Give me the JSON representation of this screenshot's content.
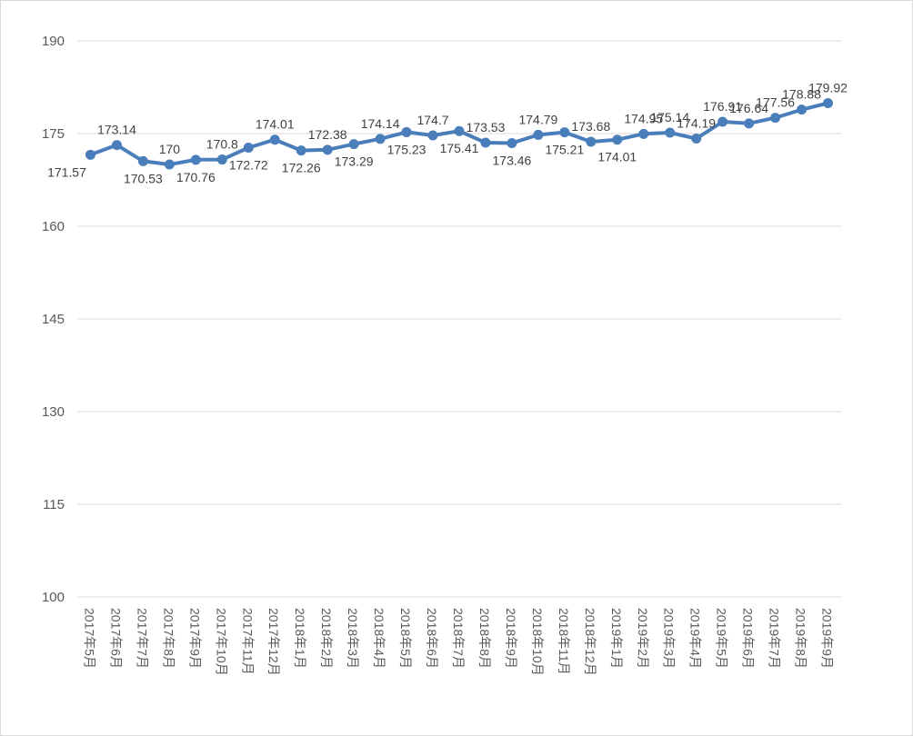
{
  "chart_data": {
    "type": "line",
    "title": "",
    "xlabel": "",
    "ylabel": "",
    "ylim": [
      100,
      190
    ],
    "yticks": [
      100,
      115,
      130,
      145,
      160,
      175,
      190
    ],
    "grid": true,
    "legend": "none",
    "line_color": "#4a7ebb",
    "grid_color": "#d9d9d9",
    "categories": [
      "2017年5月",
      "2017年6月",
      "2017年7月",
      "2017年8月",
      "2017年9月",
      "2017年10月",
      "2017年11月",
      "2017年12月",
      "2018年1月",
      "2018年2月",
      "2018年3月",
      "2018年4月",
      "2018年5月",
      "2018年6月",
      "2018年7月",
      "2018年8月",
      "2018年9月",
      "2018年10月",
      "2018年11月",
      "2018年12月",
      "2019年1月",
      "2019年2月",
      "2019年3月",
      "2019年4月",
      "2019年5月",
      "2019年6月",
      "2019年7月",
      "2019年8月",
      "2019年9月"
    ],
    "series": [
      {
        "values": [
          171.57,
          173.14,
          170.53,
          170,
          170.76,
          170.8,
          172.72,
          174.01,
          172.26,
          172.38,
          173.29,
          174.14,
          175.23,
          174.7,
          175.41,
          173.53,
          173.46,
          174.79,
          175.21,
          173.68,
          174.01,
          174.95,
          175.14,
          174.19,
          176.91,
          176.64,
          177.56,
          178.88,
          179.92
        ]
      }
    ]
  }
}
